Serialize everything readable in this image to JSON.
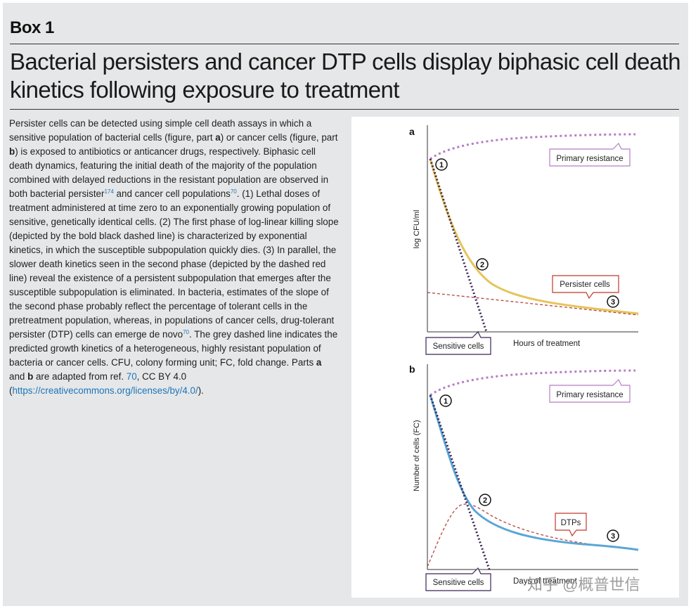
{
  "box_label": "Box 1",
  "title": "Bacterial persisters and cancer DTP cells display biphasic cell death kinetics following exposure to treatment",
  "body": {
    "s1": "Persister cells can be detected using simple cell death assays in which a sensitive population of bacterial cells (figure, part ",
    "a1": "a",
    "s2": ") or cancer cells (figure, part ",
    "b1": "b",
    "s3": ") is exposed to antibiotics or anticancer drugs, respectively. Biphasic cell death dynamics, featuring the initial death of the majority of the population combined with delayed reductions in the resistant population are observed in both bacterial persister",
    "ref174": "174",
    "s4": " and cancer cell populations",
    "ref70a": "70",
    "s5": ". (1) Lethal doses of treatment administered at time zero to an exponentially growing population of sensitive, genetically identical cells. (2) The first phase of log-linear killing slope (depicted by the bold black dashed line) is characterized by exponential kinetics, in which the susceptible subpopulation quickly dies. (3) In parallel, the slower death kinetics seen in the second phase (depicted by the dashed red line) reveal the existence of a persistent subpopulation that emerges after the susceptible subpopulation is eliminated. In bacteria, estimates of the slope of the second phase probably reflect the percentage of tolerant cells in the pretreatment population, whereas, in populations of cancer cells, drug-tolerant persister (DTP) cells can emerge de novo",
    "ref70b": "70",
    "s6": ". The grey dashed line indicates the predicted growth kinetics of a heterogeneous, highly resistant population of bacteria or cancer cells. CFU, colony forming unit; FC, fold change. Parts ",
    "a2": "a",
    "s7": " and ",
    "b2": "b",
    "s8": " are adapted from ref. ",
    "ref70c": "70",
    "s9": ", CC BY 4.0 (",
    "url": "https://creativecommons.org/licenses/by/4.0/",
    "s10": ")."
  },
  "figure": {
    "panel_a": {
      "label": "a",
      "ylabel": "log CFU/ml",
      "xlabel": "Hours of treatment",
      "callout_primary": "Primary resistance",
      "callout_persister": "Persister cells",
      "callout_sensitive": "Sensitive cells",
      "marker1": "1",
      "marker2": "2",
      "marker3": "3"
    },
    "panel_b": {
      "label": "b",
      "ylabel": "Number of cells (FC)",
      "xlabel": "Days of treatment",
      "callout_primary": "Primary resistance",
      "callout_dtps": "DTPs",
      "callout_sensitive": "Sensitive cells",
      "marker1": "1",
      "marker2": "2",
      "marker3": "3"
    },
    "colors": {
      "resistance": "#b57ec4",
      "sensitive": "#3b2455",
      "persister_a": "#e5c45a",
      "persister_b": "#5aa6d6",
      "red_dashed": "#b5453d",
      "callout_border_primary": "#b57ec4",
      "callout_border_persister": "#c0392b",
      "callout_border_sensitive": "#3b2455"
    }
  },
  "watermark": "知乎 @概普世信"
}
